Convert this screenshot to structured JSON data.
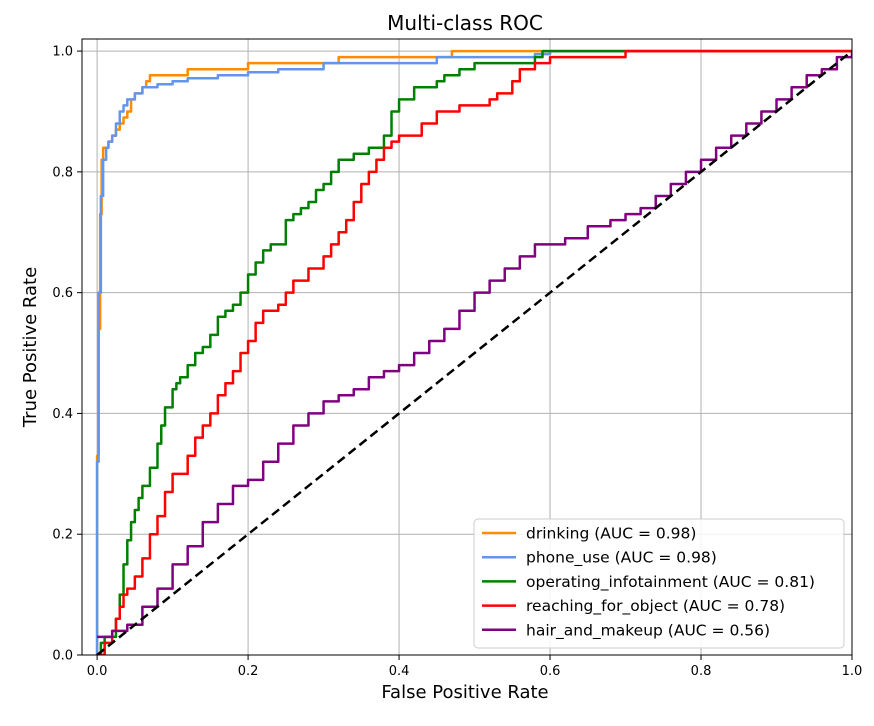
{
  "chart_data": {
    "type": "line",
    "title": "Multi-class ROC",
    "xlabel": "False Positive Rate",
    "ylabel": "True Positive Rate",
    "xlim": [
      -0.02,
      1.0
    ],
    "ylim": [
      0.0,
      1.02
    ],
    "xticks": [
      0.0,
      0.2,
      0.4,
      0.6,
      0.8,
      1.0
    ],
    "yticks": [
      0.0,
      0.2,
      0.4,
      0.6,
      0.8,
      1.0
    ],
    "xtick_labels": [
      "0.0",
      "0.2",
      "0.4",
      "0.6",
      "0.8",
      "1.0"
    ],
    "ytick_labels": [
      "0.0",
      "0.2",
      "0.4",
      "0.6",
      "0.8",
      "1.0"
    ],
    "grid": true,
    "legend_position": "lower-right",
    "series": [
      {
        "name": "drinking (AUC = 0.98)",
        "color": "#ff8c00",
        "x": [
          0,
          0,
          0.002,
          0.002,
          0.004,
          0.004,
          0.006,
          0.006,
          0.008,
          0.008,
          0.012,
          0.015,
          0.02,
          0.025,
          0.03,
          0.035,
          0.04,
          0.045,
          0.05,
          0.06,
          0.065,
          0.07,
          0.09,
          0.12,
          0.15,
          0.2,
          0.25,
          0.32,
          0.4,
          0.47,
          0.5,
          0.6,
          0.7,
          0.8,
          0.9,
          1.0
        ],
        "y": [
          0,
          0.33,
          0.33,
          0.54,
          0.54,
          0.73,
          0.78,
          0.82,
          0.82,
          0.84,
          0.84,
          0.85,
          0.86,
          0.87,
          0.88,
          0.89,
          0.9,
          0.92,
          0.93,
          0.94,
          0.95,
          0.96,
          0.96,
          0.97,
          0.97,
          0.98,
          0.98,
          0.99,
          0.99,
          1.0,
          1.0,
          1.0,
          1.0,
          1.0,
          1.0,
          1.0
        ]
      },
      {
        "name": "phone_use (AUC = 0.98)",
        "color": "#6495ed",
        "x": [
          0,
          0,
          0.002,
          0.002,
          0.005,
          0.005,
          0.008,
          0.008,
          0.012,
          0.015,
          0.02,
          0.025,
          0.03,
          0.035,
          0.04,
          0.045,
          0.05,
          0.055,
          0.06,
          0.065,
          0.08,
          0.1,
          0.12,
          0.16,
          0.2,
          0.24,
          0.3,
          0.4,
          0.45,
          0.5,
          0.58,
          0.6,
          0.7,
          0.8,
          0.82
        ],
        "y": [
          0,
          0.32,
          0.32,
          0.6,
          0.62,
          0.76,
          0.78,
          0.82,
          0.84,
          0.85,
          0.86,
          0.88,
          0.9,
          0.91,
          0.92,
          0.92,
          0.93,
          0.93,
          0.94,
          0.94,
          0.945,
          0.95,
          0.955,
          0.96,
          0.965,
          0.97,
          0.98,
          0.98,
          0.99,
          0.99,
          0.995,
          1.0,
          1.0,
          1.0,
          1.0
        ]
      },
      {
        "name": "operating_infotainment (AUC = 0.81)",
        "color": "#008000",
        "x": [
          0,
          0.005,
          0.01,
          0.02,
          0.025,
          0.03,
          0.035,
          0.04,
          0.045,
          0.05,
          0.055,
          0.06,
          0.07,
          0.08,
          0.085,
          0.09,
          0.1,
          0.105,
          0.11,
          0.12,
          0.13,
          0.14,
          0.15,
          0.16,
          0.17,
          0.18,
          0.19,
          0.2,
          0.21,
          0.22,
          0.23,
          0.24,
          0.25,
          0.26,
          0.27,
          0.28,
          0.29,
          0.3,
          0.31,
          0.32,
          0.33,
          0.34,
          0.36,
          0.38,
          0.39,
          0.4,
          0.42,
          0.45,
          0.46,
          0.48,
          0.5,
          0.58,
          0.59,
          0.6,
          1.0
        ],
        "y": [
          0,
          0.02,
          0.03,
          0.03,
          0.06,
          0.1,
          0.15,
          0.19,
          0.22,
          0.24,
          0.26,
          0.28,
          0.31,
          0.35,
          0.38,
          0.41,
          0.44,
          0.45,
          0.46,
          0.48,
          0.5,
          0.51,
          0.53,
          0.56,
          0.57,
          0.58,
          0.6,
          0.63,
          0.65,
          0.67,
          0.68,
          0.68,
          0.72,
          0.73,
          0.74,
          0.75,
          0.77,
          0.78,
          0.8,
          0.82,
          0.82,
          0.83,
          0.84,
          0.86,
          0.9,
          0.92,
          0.94,
          0.95,
          0.96,
          0.97,
          0.98,
          0.99,
          1.0,
          1.0,
          1.0
        ]
      },
      {
        "name": "reaching_for_object (AUC = 0.78)",
        "color": "#ff0000",
        "x": [
          0,
          0.01,
          0.02,
          0.025,
          0.03,
          0.035,
          0.04,
          0.05,
          0.06,
          0.07,
          0.08,
          0.09,
          0.1,
          0.12,
          0.13,
          0.14,
          0.15,
          0.16,
          0.17,
          0.18,
          0.19,
          0.2,
          0.21,
          0.22,
          0.24,
          0.25,
          0.26,
          0.28,
          0.3,
          0.31,
          0.32,
          0.33,
          0.34,
          0.35,
          0.36,
          0.37,
          0.38,
          0.39,
          0.4,
          0.43,
          0.45,
          0.48,
          0.52,
          0.53,
          0.55,
          0.56,
          0.58,
          0.6,
          0.7,
          0.8,
          0.9,
          1.0
        ],
        "y": [
          0,
          0.02,
          0.04,
          0.06,
          0.08,
          0.1,
          0.11,
          0.13,
          0.16,
          0.2,
          0.23,
          0.27,
          0.3,
          0.33,
          0.36,
          0.38,
          0.4,
          0.43,
          0.45,
          0.47,
          0.5,
          0.52,
          0.55,
          0.57,
          0.58,
          0.6,
          0.62,
          0.64,
          0.66,
          0.68,
          0.7,
          0.72,
          0.75,
          0.78,
          0.8,
          0.82,
          0.84,
          0.85,
          0.86,
          0.88,
          0.9,
          0.91,
          0.92,
          0.93,
          0.95,
          0.97,
          0.98,
          0.99,
          1.0,
          1.0,
          1.0,
          1.0
        ]
      },
      {
        "name": "hair_and_makeup (AUC = 0.56)",
        "color": "#800080",
        "x": [
          0,
          0.02,
          0.03,
          0.04,
          0.06,
          0.08,
          0.1,
          0.12,
          0.14,
          0.16,
          0.18,
          0.2,
          0.22,
          0.24,
          0.26,
          0.28,
          0.3,
          0.32,
          0.34,
          0.36,
          0.38,
          0.4,
          0.42,
          0.44,
          0.46,
          0.48,
          0.5,
          0.52,
          0.54,
          0.56,
          0.58,
          0.62,
          0.65,
          0.68,
          0.7,
          0.72,
          0.74,
          0.76,
          0.78,
          0.8,
          0.82,
          0.84,
          0.86,
          0.88,
          0.9,
          0.92,
          0.94,
          0.96,
          0.98,
          1.0
        ],
        "y": [
          0.03,
          0.04,
          0.04,
          0.05,
          0.08,
          0.11,
          0.15,
          0.18,
          0.22,
          0.25,
          0.28,
          0.29,
          0.32,
          0.35,
          0.38,
          0.4,
          0.42,
          0.43,
          0.44,
          0.46,
          0.47,
          0.48,
          0.5,
          0.52,
          0.54,
          0.57,
          0.6,
          0.62,
          0.64,
          0.66,
          0.68,
          0.69,
          0.71,
          0.72,
          0.73,
          0.74,
          0.76,
          0.78,
          0.8,
          0.82,
          0.84,
          0.86,
          0.88,
          0.9,
          0.92,
          0.94,
          0.96,
          0.97,
          0.99,
          1.0
        ]
      },
      {
        "name": "",
        "color": "#000000",
        "dashed": true,
        "x": [
          0.0,
          1.0
        ],
        "y": [
          0.0,
          1.0
        ]
      }
    ]
  }
}
